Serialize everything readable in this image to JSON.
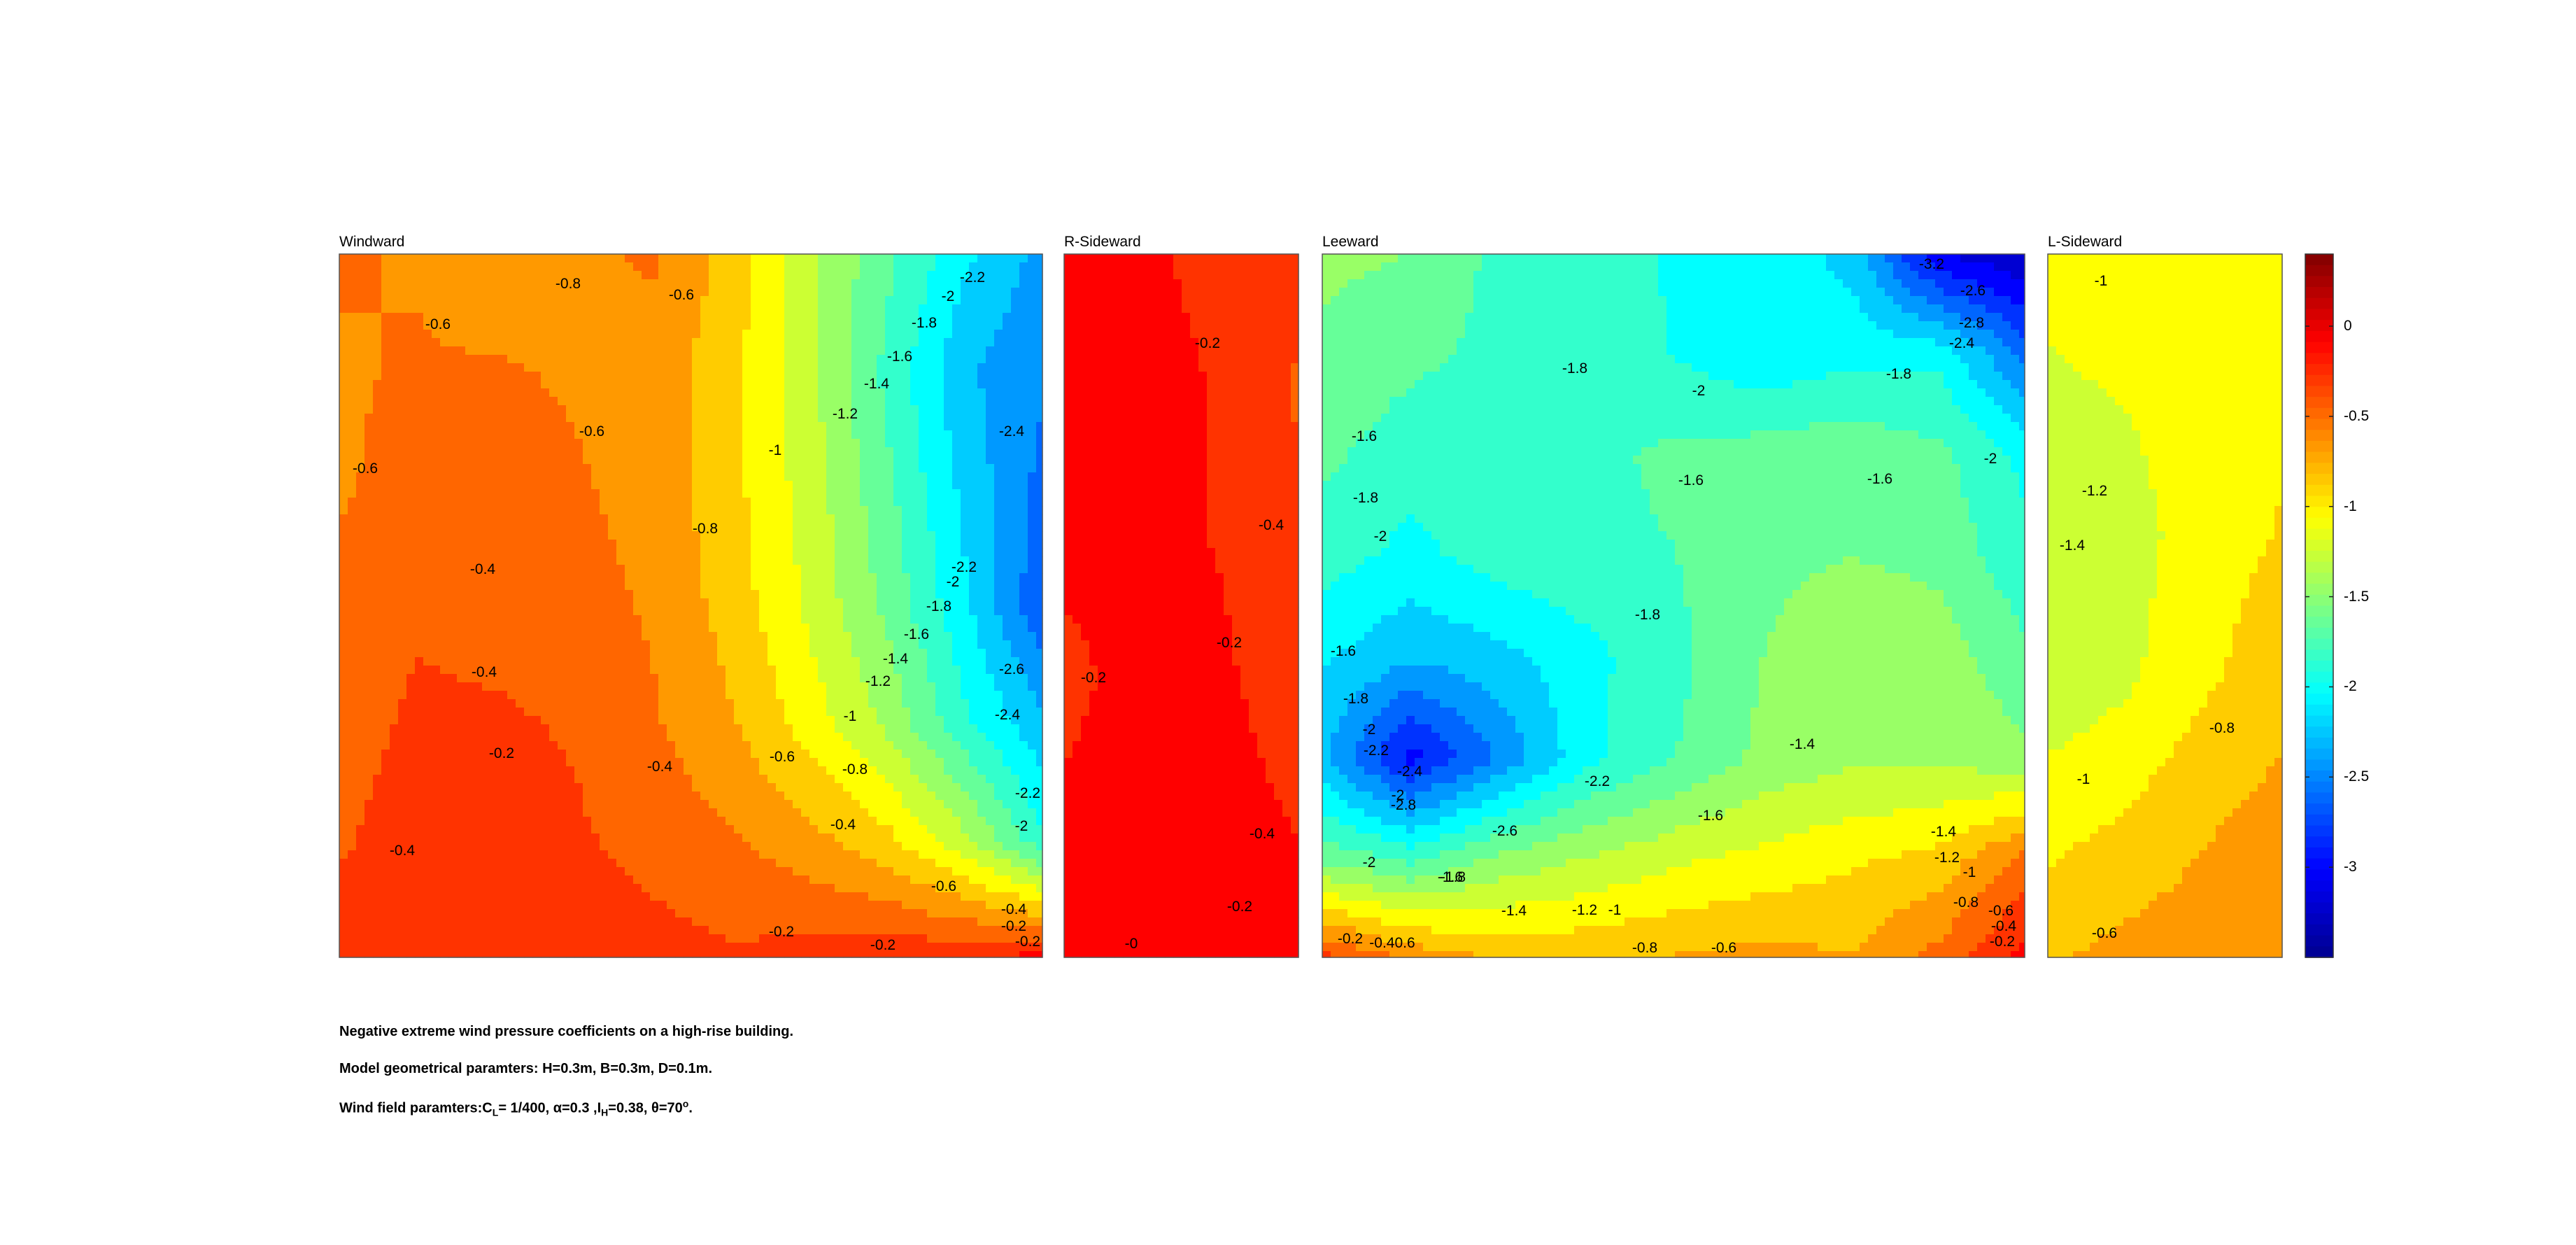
{
  "panels": [
    {
      "title": "Windward"
    },
    {
      "title": "R-Sideward"
    },
    {
      "title": "Leeward"
    },
    {
      "title": "L-Sideward"
    }
  ],
  "colorbar": {
    "min": -3.5,
    "max": 0.4,
    "ticks": [
      {
        "value": 0,
        "label": "0"
      },
      {
        "value": -0.5,
        "label": "-0.5"
      },
      {
        "value": -1,
        "label": "-1"
      },
      {
        "value": -1.5,
        "label": "-1.5"
      },
      {
        "value": -2,
        "label": "-2"
      },
      {
        "value": -2.5,
        "label": "-2.5"
      },
      {
        "value": -3,
        "label": "-3"
      }
    ],
    "colormap": [
      "#00008f",
      "#0000ff",
      "#0080ff",
      "#00ffff",
      "#80ff80",
      "#ffff00",
      "#ff8000",
      "#ff0000",
      "#800000"
    ]
  },
  "chart_data": {
    "type": "heatmap",
    "colorbar_range": [
      -3.5,
      0.4
    ],
    "faces": [
      {
        "name": "Windward",
        "contour_labels": [
          "-0.8",
          "-0.6",
          "-2.2",
          "-0.6",
          "-2",
          "-1.8",
          "-1.6",
          "-1.4",
          "-1.2",
          "-0.6",
          "-1",
          "-2.4",
          "-0.6",
          "-0.8",
          "-0.4",
          "-2.2",
          "-2",
          "-1.8",
          "-1.6",
          "-1.4",
          "-2.6",
          "-1.2",
          "-0.4",
          "-1",
          "-2.4",
          "-0.2",
          "-0.4",
          "-0.6",
          "-0.8",
          "-2.2",
          "-0.4",
          "-2",
          "-0.4",
          "-0.6",
          "-0.2",
          "-0.2",
          "-0.4",
          "-0.2",
          "-0.2"
        ],
        "grid": [
          [
            -0.55,
            -0.6,
            -0.75,
            -0.62,
            -0.55,
            -0.85,
            -1.3,
            -1.7,
            -2.1,
            -2.4
          ],
          [
            -0.6,
            -0.55,
            -0.55,
            -0.6,
            -0.65,
            -0.9,
            -1.3,
            -1.8,
            -2.3,
            -2.5
          ],
          [
            -0.6,
            -0.5,
            -0.48,
            -0.55,
            -0.65,
            -0.9,
            -1.25,
            -1.7,
            -2.2,
            -2.6
          ],
          [
            -0.5,
            -0.4,
            -0.45,
            -0.5,
            -0.6,
            -0.85,
            -1.2,
            -1.6,
            -2.1,
            -2.7
          ],
          [
            -0.45,
            -0.35,
            -0.35,
            -0.4,
            -0.55,
            -0.75,
            -1.05,
            -1.4,
            -1.9,
            -2.3
          ],
          [
            -0.4,
            -0.3,
            -0.3,
            -0.35,
            -0.45,
            -0.55,
            -0.7,
            -0.9,
            -1.3,
            -1.9
          ],
          [
            -0.3,
            -0.25,
            -0.22,
            -0.25,
            -0.3,
            -0.35,
            -0.3,
            -0.25,
            -0.2,
            -0.1
          ]
        ]
      },
      {
        "name": "R-Sideward",
        "contour_labels": [
          "-0.2",
          "-0.4",
          "-0.2",
          "-0.2",
          "-0.4",
          "-0.2",
          "-0"
        ],
        "grid": [
          [
            -0.1,
            -0.15,
            -0.25,
            -0.35
          ],
          [
            -0.1,
            -0.1,
            -0.2,
            -0.4
          ],
          [
            -0.12,
            -0.1,
            -0.2,
            -0.35
          ],
          [
            -0.25,
            -0.1,
            -0.15,
            -0.3
          ],
          [
            -0.15,
            -0.05,
            -0.1,
            -0.2
          ],
          [
            -0.05,
            -0.05,
            -0.05,
            -0.1
          ]
        ]
      },
      {
        "name": "Leeward",
        "contour_labels": [
          "-3.2",
          "-2.6",
          "-2.8",
          "-2.4",
          "-1.8",
          "-2",
          "-1.8",
          "-1.6",
          "-1.6",
          "-1.6",
          "-2",
          "-1.8",
          "-2",
          "-1.8",
          "-1.6",
          "-1.8",
          "-2",
          "-2.2",
          "-2.4",
          "-2",
          "-2.8",
          "-2.6",
          "-2.2",
          "-2",
          "-1.4",
          "-1.6",
          "-1.4",
          "-1.2",
          "-1.6",
          "-1.8",
          "-1.4",
          "-1.2",
          "-1",
          "-0.8",
          "-0.6",
          "-0.4",
          "-0.2",
          "-0.6",
          "-0.8",
          "-1",
          "-0.2",
          "-0.40.6"
        ],
        "grid": [
          [
            -1.5,
            -1.55,
            -1.8,
            -1.9,
            -1.95,
            -2.0,
            -2.2,
            -3.1,
            -3.3
          ],
          [
            -1.6,
            -1.7,
            -1.8,
            -1.85,
            -1.95,
            -2.1,
            -2.0,
            -2.0,
            -2.6
          ],
          [
            -1.7,
            -1.85,
            -1.85,
            -1.8,
            -1.7,
            -1.65,
            -1.6,
            -1.7,
            -2.0
          ],
          [
            -1.85,
            -2.0,
            -1.85,
            -1.8,
            -1.75,
            -1.6,
            -1.55,
            -1.6,
            -1.9
          ],
          [
            -2.1,
            -2.3,
            -2.2,
            -2.0,
            -1.8,
            -1.55,
            -1.4,
            -1.45,
            -1.7
          ],
          [
            -2.3,
            -3.0,
            -2.5,
            -2.0,
            -1.75,
            -1.5,
            -1.4,
            -1.4,
            -1.5
          ],
          [
            -1.6,
            -1.8,
            -1.5,
            -1.35,
            -1.2,
            -1.1,
            -1.0,
            -0.9,
            -0.5
          ],
          [
            -0.3,
            -0.6,
            -0.8,
            -0.8,
            -0.75,
            -0.7,
            -0.75,
            -0.5,
            -0.1
          ]
        ]
      },
      {
        "name": "L-Sideward",
        "contour_labels": [
          "-1",
          "-1.2",
          "-1.4",
          "-0.8",
          "-1",
          "-0.6"
        ],
        "grid": [
          [
            -1.1,
            -1.0,
            -1.0,
            -1.0
          ],
          [
            -1.2,
            -1.15,
            -1.05,
            -1.0
          ],
          [
            -1.35,
            -1.25,
            -1.05,
            -0.95
          ],
          [
            -1.3,
            -1.2,
            -1.0,
            -0.85
          ],
          [
            -1.05,
            -0.95,
            -0.8,
            -0.7
          ],
          [
            -0.8,
            -0.7,
            -0.65,
            -0.6
          ]
        ]
      }
    ]
  },
  "caption": {
    "line1": "Negative extreme wind pressure coefficients on a high-rise building.",
    "line2": "Model geometrical paramters: H=0.3m, B=0.3m, D=0.1m.",
    "line3_prefix": "Wind field paramters:C",
    "line3_sub1": "L",
    "line3_mid": "= 1/400, α=0.3 ,I",
    "line3_sub2": "H",
    "line3_suffix": "=0.38, θ=70",
    "line3_sup": "o",
    "line3_end": "."
  }
}
